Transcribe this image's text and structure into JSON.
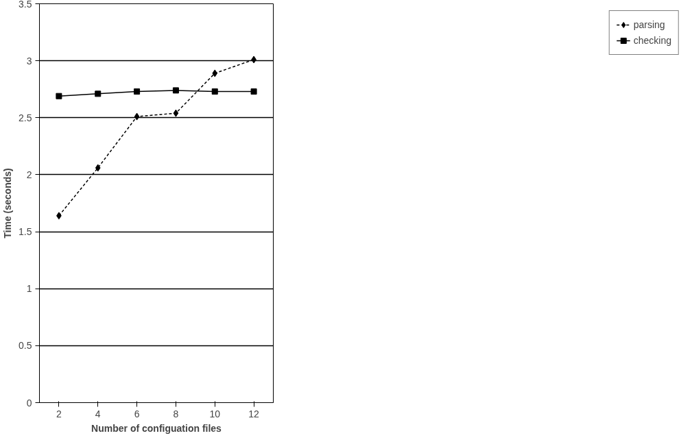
{
  "chart_data": {
    "type": "line",
    "xlabel": "Number of configuation files",
    "ylabel": "Time (seconds)",
    "categories": [
      "2",
      "4",
      "6",
      "8",
      "10",
      "12"
    ],
    "series": [
      {
        "name": "parsing",
        "color": "#000000",
        "marker": "diamond",
        "line_style": "dashed",
        "values": [
          1.64,
          2.06,
          2.51,
          2.54,
          2.89,
          3.01
        ]
      },
      {
        "name": "checking",
        "color": "#000000",
        "marker": "square",
        "line_style": "solid",
        "values": [
          2.69,
          2.71,
          2.73,
          2.74,
          2.73,
          2.73
        ]
      }
    ],
    "ylim": [
      0,
      3.5
    ],
    "yticks": [
      0,
      0.5,
      1,
      1.5,
      2,
      2.5,
      3,
      3.5
    ],
    "grid": "y",
    "legend": "right"
  }
}
